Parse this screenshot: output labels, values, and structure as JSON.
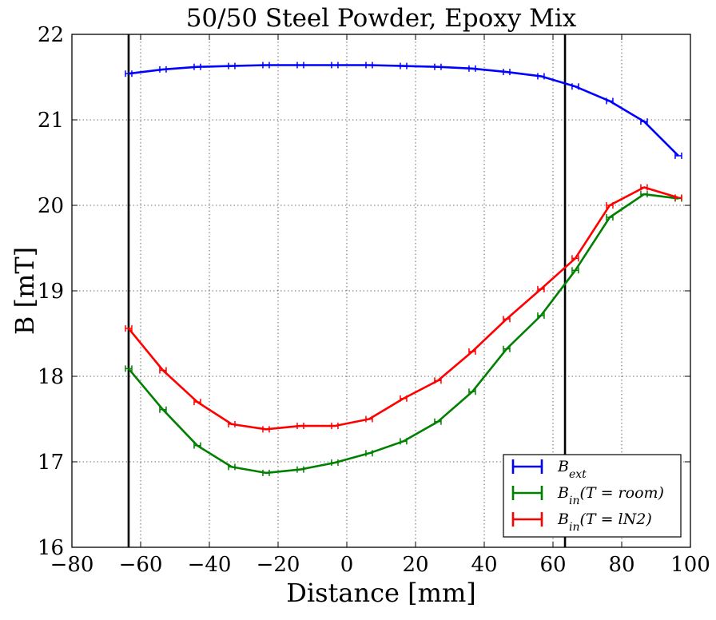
{
  "chart_data": {
    "type": "line",
    "title": "50/50 Steel Powder, Epoxy Mix",
    "xlabel": "Distance [mm]",
    "ylabel": "B [mT]",
    "xlim": [
      -80,
      100
    ],
    "ylim": [
      16,
      22
    ],
    "x_ticks": [
      -80,
      -60,
      -40,
      -20,
      0,
      20,
      40,
      60,
      80,
      100
    ],
    "y_ticks": [
      16,
      17,
      18,
      19,
      20,
      21,
      22
    ],
    "x_tick_labels": [
      "−80",
      "−60",
      "−40",
      "−20",
      "0",
      "20",
      "40",
      "60",
      "80",
      "100"
    ],
    "y_tick_labels": [
      "16",
      "17",
      "18",
      "19",
      "20",
      "21",
      "22"
    ],
    "grid": true,
    "legend_position": "bottom-right",
    "vertical_lines": [
      -63.5,
      63.5
    ],
    "series": [
      {
        "name": "B_ext",
        "color": "#0000ff",
        "x": [
          -63.5,
          -53.5,
          -43.5,
          -33.5,
          -23.5,
          -13.5,
          -3.5,
          6.5,
          16.5,
          26.5,
          36.5,
          46.5,
          56.5,
          66.5,
          76.5,
          86.5,
          96.5
        ],
        "y": [
          21.54,
          21.59,
          21.62,
          21.63,
          21.64,
          21.64,
          21.64,
          21.64,
          21.63,
          21.62,
          21.6,
          21.56,
          21.51,
          21.39,
          21.22,
          20.98,
          20.58
        ]
      },
      {
        "name": "B_in(T = room)",
        "color": "#008000",
        "x": [
          -63.5,
          -53.5,
          -43.5,
          -33.5,
          -23.5,
          -13.5,
          -3.5,
          6.5,
          16.5,
          26.5,
          36.5,
          46.5,
          56.5,
          66.5,
          76.5,
          86.5,
          96.5
        ],
        "y": [
          18.09,
          17.61,
          17.19,
          16.94,
          16.87,
          16.91,
          16.99,
          17.1,
          17.24,
          17.47,
          17.82,
          18.32,
          18.71,
          19.24,
          19.86,
          20.13,
          20.08
        ]
      },
      {
        "name": "B_in(T = lN2)",
        "color": "#ff0000",
        "x": [
          -63.5,
          -53.5,
          -43.5,
          -33.5,
          -23.5,
          -13.5,
          -3.5,
          6.5,
          16.5,
          26.5,
          36.5,
          46.5,
          56.5,
          66.5,
          76.5,
          86.5,
          96.5
        ],
        "y": [
          18.56,
          18.07,
          17.7,
          17.44,
          17.38,
          17.42,
          17.42,
          17.5,
          17.74,
          17.95,
          18.29,
          18.67,
          19.02,
          19.38,
          20.0,
          20.21,
          20.09
        ]
      }
    ],
    "legend": [
      {
        "symbol": "B",
        "subscript": "ext",
        "suffix": ""
      },
      {
        "symbol": "B",
        "subscript": "in",
        "suffix": "(T = room)"
      },
      {
        "symbol": "B",
        "subscript": "in",
        "suffix": "(T = lN2)"
      }
    ]
  }
}
